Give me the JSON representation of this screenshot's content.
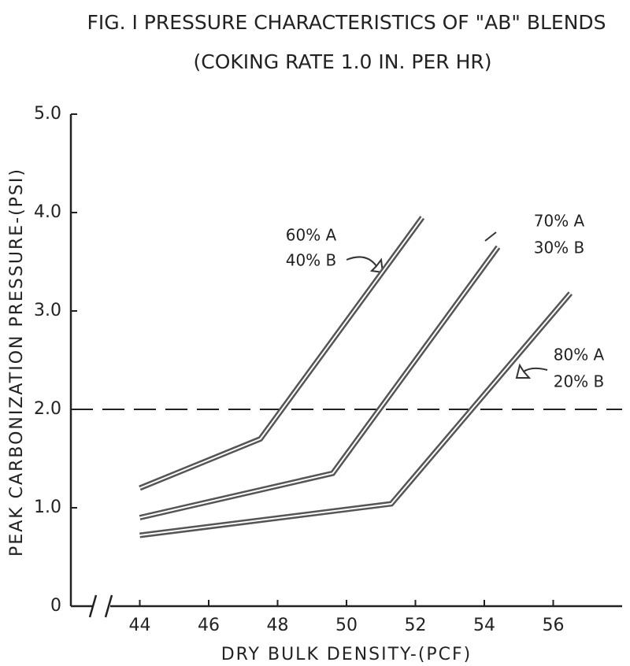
{
  "chart_data": {
    "type": "line",
    "title": "FIG. I  PRESSURE CHARACTERISTICS OF \"AB\" BLENDS",
    "subtitle": "(COKING RATE 1.0 IN. PER HR)",
    "x_label": "DRY BULK DENSITY-(PCF)",
    "y_label": "PEAK CARBONIZATION PRESSURE-(PSI)",
    "xlim": [
      42,
      58
    ],
    "xticks": [
      44,
      46,
      48,
      50,
      52,
      54,
      56
    ],
    "ylim": [
      0,
      5
    ],
    "yticks": [
      0,
      {
        "value": 1,
        "label": "1.0"
      },
      {
        "value": 2,
        "label": "2.0"
      },
      {
        "value": 3,
        "label": "3.0"
      },
      {
        "value": 4,
        "label": "4.0"
      },
      {
        "value": 5,
        "label": "5.0"
      }
    ],
    "reference_line": 2,
    "series": [
      {
        "label": [
          "60% A",
          "40% B"
        ],
        "color": "#555555",
        "x": [
          44,
          47.5,
          52.2
        ],
        "values": [
          1.2,
          1.7,
          3.95
        ]
      },
      {
        "label": [
          "70% A",
          "30% B"
        ],
        "color": "#555555",
        "x": [
          44,
          49.6,
          54.4
        ],
        "values": [
          0.9,
          1.35,
          3.65
        ]
      },
      {
        "label": [
          "80% A",
          "20% B"
        ],
        "color": "#555555",
        "x": [
          44,
          51.3,
          56.5
        ],
        "values": [
          0.72,
          1.04,
          3.18
        ]
      }
    ]
  }
}
